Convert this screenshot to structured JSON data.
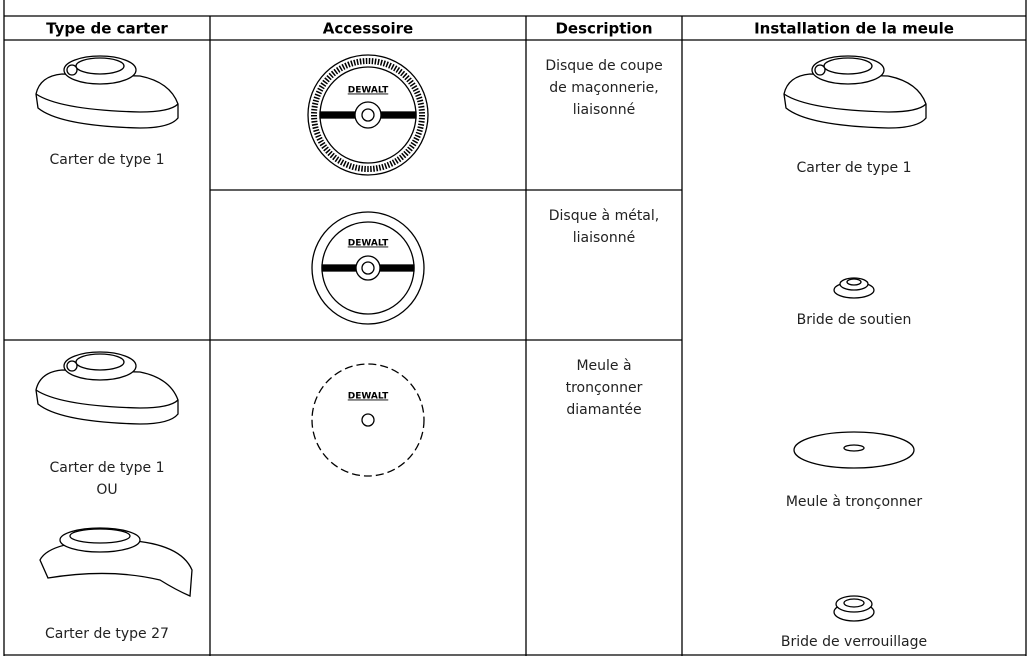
{
  "table": {
    "headers": [
      "Type de carter",
      "Accessoire",
      "Description",
      "Installation de la meule"
    ],
    "guard_cells": [
      {
        "lines": [
          "Carter de type 1"
        ]
      },
      {
        "lines": [
          "Carter de type 1",
          "OU",
          "Carter de type 27"
        ]
      }
    ],
    "accessories": [
      {
        "brand": "DEWALT",
        "description": [
          "Disque de coupe",
          "de maçonnerie,",
          "liaisonné"
        ]
      },
      {
        "brand": "DEWALT",
        "description": [
          "Disque à métal,",
          "liaisonné"
        ]
      },
      {
        "brand": "DEWALT",
        "description": [
          "Meule à",
          "tronçonner",
          "diamantée"
        ]
      }
    ],
    "installation": [
      "Carter de type 1",
      "Bride de soutien",
      "Meule à tronçonner",
      "Bride de verrouillage"
    ]
  }
}
